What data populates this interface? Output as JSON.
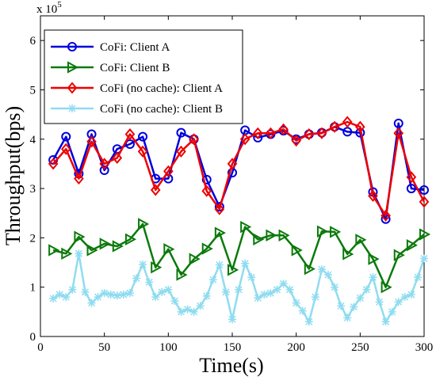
{
  "chart_data": {
    "type": "line",
    "title": "",
    "xlabel": "Time(s)",
    "ylabel": "Throughput(bps)",
    "y_multiplier_label": "x 10",
    "y_multiplier_exponent": "5",
    "xlim": [
      0,
      300
    ],
    "ylim": [
      0,
      650000
    ],
    "xticks": [
      0,
      50,
      100,
      150,
      200,
      250,
      300
    ],
    "xtick_labels": [
      "0",
      "50",
      "100",
      "150",
      "200",
      "250",
      "300"
    ],
    "yticks": [
      0,
      100000,
      200000,
      300000,
      400000,
      500000,
      600000
    ],
    "ytick_labels": [
      "0",
      "1",
      "2",
      "3",
      "4",
      "5",
      "6"
    ],
    "grid": false,
    "legend_position": "top-left",
    "series": [
      {
        "name": "CoFi: Client A",
        "color": "#0000dd",
        "marker": "circle",
        "x": [
          10,
          20,
          30,
          40,
          50,
          60,
          70,
          80,
          90,
          100,
          110,
          120,
          130,
          140,
          150,
          160,
          170,
          180,
          190,
          200,
          210,
          220,
          230,
          240,
          250,
          260,
          270,
          280,
          290,
          300
        ],
        "y": [
          358000,
          405000,
          330000,
          410000,
          337000,
          380000,
          390000,
          405000,
          320000,
          320000,
          413000,
          400000,
          318000,
          263000,
          332000,
          418000,
          403000,
          410000,
          417000,
          400000,
          410000,
          413000,
          425000,
          415000,
          413000,
          293000,
          238000,
          432000,
          300000,
          297000
        ]
      },
      {
        "name": "CoFi: Client B",
        "color": "#0a7a0a",
        "marker": "triangle-right",
        "x": [
          10,
          20,
          30,
          40,
          50,
          60,
          70,
          80,
          90,
          100,
          110,
          120,
          130,
          140,
          150,
          160,
          170,
          180,
          190,
          200,
          210,
          220,
          230,
          240,
          250,
          260,
          270,
          280,
          290,
          300
        ],
        "y": [
          175000,
          168000,
          202000,
          175000,
          188000,
          183000,
          197000,
          228000,
          140000,
          177000,
          125000,
          157000,
          178000,
          210000,
          135000,
          222000,
          197000,
          205000,
          205000,
          175000,
          137000,
          213000,
          212000,
          167000,
          196000,
          157000,
          100000,
          165000,
          185000,
          207000
        ]
      },
      {
        "name": "CoFi (no cache): Client A",
        "color": "#ee0000",
        "marker": "diamond",
        "x": [
          10,
          20,
          30,
          40,
          50,
          60,
          70,
          80,
          90,
          100,
          110,
          120,
          130,
          140,
          150,
          160,
          170,
          180,
          190,
          200,
          210,
          220,
          230,
          240,
          250,
          260,
          270,
          280,
          290,
          300
        ],
        "y": [
          350000,
          380000,
          320000,
          395000,
          350000,
          362000,
          410000,
          375000,
          297000,
          335000,
          375000,
          400000,
          295000,
          258000,
          350000,
          400000,
          412000,
          412000,
          420000,
          397000,
          410000,
          412000,
          425000,
          435000,
          425000,
          285000,
          245000,
          412000,
          323000,
          273000
        ]
      },
      {
        "name": "CoFi (no cache): Client B",
        "color": "#8fdcf0",
        "marker": "star",
        "x": [
          10,
          15,
          20,
          25,
          30,
          35,
          40,
          45,
          50,
          55,
          60,
          65,
          70,
          75,
          80,
          85,
          90,
          95,
          100,
          105,
          110,
          115,
          120,
          125,
          130,
          135,
          140,
          145,
          150,
          155,
          160,
          165,
          170,
          175,
          180,
          185,
          190,
          195,
          200,
          205,
          210,
          215,
          220,
          225,
          230,
          235,
          240,
          245,
          250,
          255,
          260,
          265,
          270,
          275,
          280,
          285,
          290,
          295,
          300
        ],
        "y": [
          77000,
          85000,
          80000,
          95000,
          168000,
          90000,
          68000,
          80000,
          88000,
          85000,
          83000,
          85000,
          88000,
          118000,
          146000,
          110000,
          80000,
          90000,
          95000,
          72000,
          50000,
          55000,
          50000,
          62000,
          82000,
          115000,
          145000,
          90000,
          35000,
          95000,
          148000,
          120000,
          78000,
          85000,
          88000,
          95000,
          107000,
          95000,
          68000,
          52000,
          30000,
          80000,
          136000,
          125000,
          100000,
          62000,
          38000,
          60000,
          78000,
          95000,
          120000,
          70000,
          30000,
          50000,
          70000,
          80000,
          85000,
          120000,
          158000
        ]
      }
    ]
  }
}
